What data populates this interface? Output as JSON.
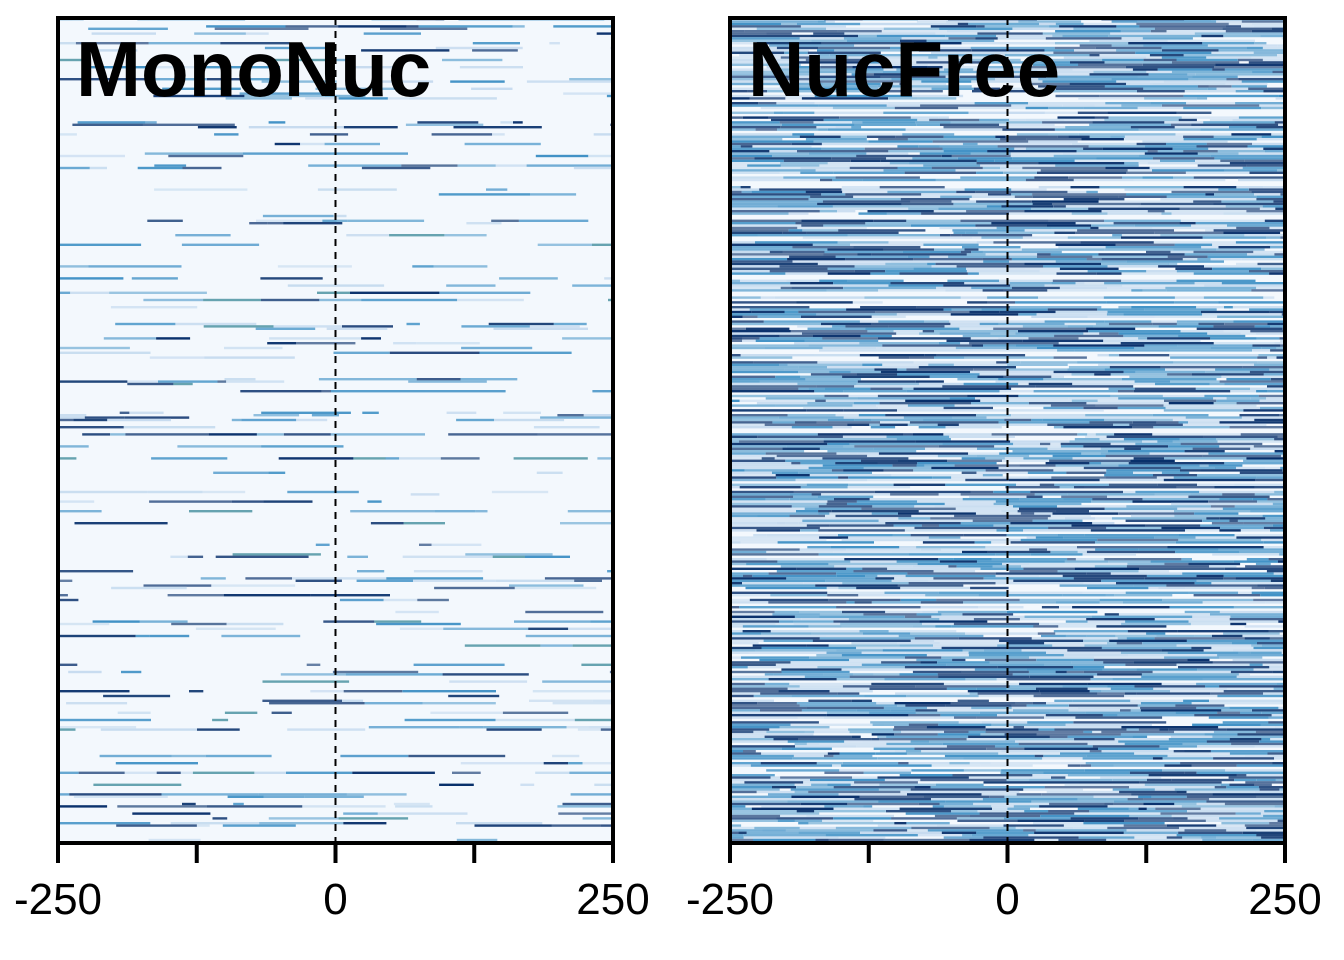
{
  "chart_data": [
    {
      "type": "heatmap",
      "title": "MonoNuc",
      "x_ticks": [
        -250,
        0,
        250
      ],
      "x_minor_ticks": [
        -125,
        125
      ],
      "xlim": [
        -250,
        250
      ],
      "reference_line_x": 0,
      "colormap": "blues",
      "colors": {
        "background": "#f3f8fd",
        "low": "#c6dbef",
        "mid": "#4292c6",
        "high": "#08306b",
        "teal": "#2a7f8f"
      },
      "signal_density": 0.28,
      "signal_intensity": 0.35
    },
    {
      "type": "heatmap",
      "title": "NucFree",
      "x_ticks": [
        -250,
        0,
        250
      ],
      "x_minor_ticks": [
        -125,
        125
      ],
      "xlim": [
        -250,
        250
      ],
      "reference_line_x": 0,
      "colormap": "blues",
      "colors": {
        "background": "#f3f8fd",
        "low": "#c6dbef",
        "mid": "#4292c6",
        "high": "#08306b",
        "teal": "#2a7f8f"
      },
      "signal_density": 0.9,
      "signal_intensity": 0.85
    }
  ]
}
